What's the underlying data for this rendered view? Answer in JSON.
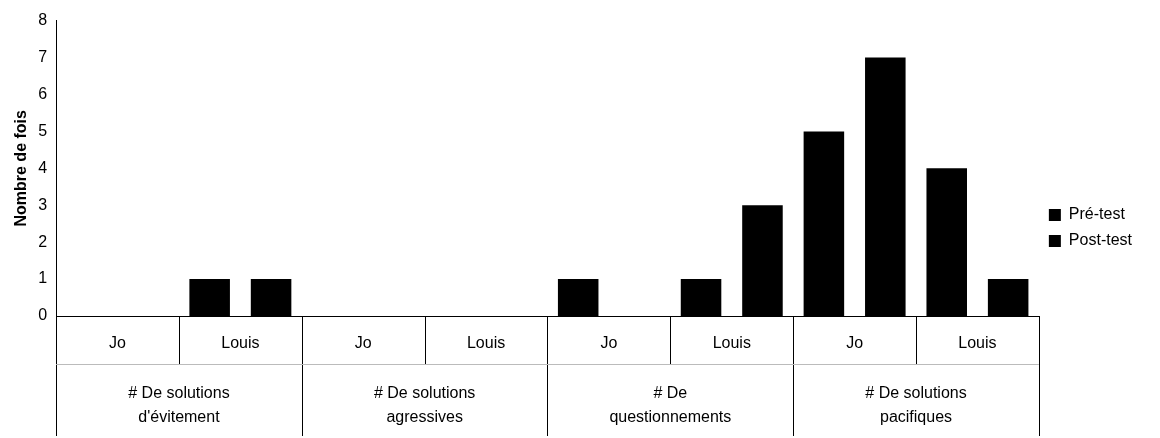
{
  "chart_data": {
    "type": "bar",
    "ylabel": "Nombre de fois",
    "categories": [
      "Jo",
      "Louis",
      "Jo",
      "Louis",
      "Jo",
      "Louis",
      "Jo",
      "Louis"
    ],
    "series": [
      {
        "name": "Pré-test",
        "color": "#000000",
        "values": [
          0,
          1,
          0,
          0,
          1,
          1,
          5,
          4
        ]
      },
      {
        "name": "Post-test",
        "color": "#000000",
        "values": [
          0,
          1,
          0,
          0,
          0,
          3,
          7,
          1
        ]
      }
    ],
    "annotations": [
      "# De solutions d'évitement",
      "# De solutions agressives",
      "# De questionnements",
      "# De solutions pacifiques"
    ],
    "ylim": [
      0,
      8
    ],
    "yticks": [
      0,
      1,
      2,
      3,
      4,
      5,
      6,
      7,
      8
    ],
    "grid": false,
    "legend": "right"
  }
}
